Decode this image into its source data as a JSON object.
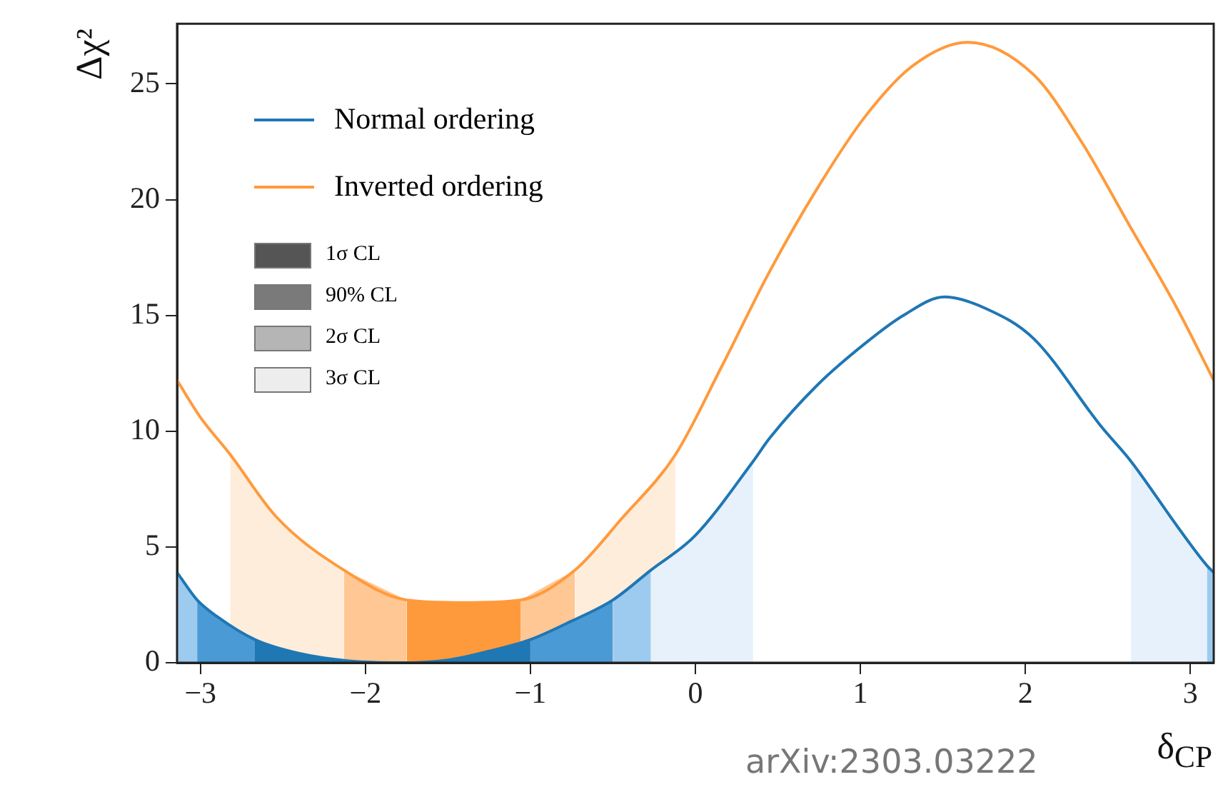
{
  "chart_data": {
    "type": "line",
    "xlabel": "δ$_{CP}$",
    "ylabel": "Δχ²",
    "xlim": [
      -3.1416,
      3.1416
    ],
    "ylim": [
      0,
      27.6
    ],
    "xticks": [
      -3,
      -2,
      -1,
      0,
      1,
      2,
      3
    ],
    "yticks": [
      0,
      5,
      10,
      15,
      20,
      25
    ],
    "grid": false,
    "legend": "top left",
    "marker": "none",
    "series": [
      {
        "type": "area",
        "color": "#1f77b4",
        "x": [
          -2.67,
          -2.4,
          -2.1,
          -1.8,
          -1.5,
          -1.25,
          -1.0
        ],
        "values": [
          1.0,
          0.4,
          0.08,
          0,
          0.12,
          0.5,
          1.0
        ]
      },
      {
        "type": "area",
        "color": "#4a9ad6",
        "x": [
          -3.02,
          -2.9,
          -2.67
        ],
        "values": [
          2.71,
          2.0,
          1.0
        ]
      },
      {
        "type": "area",
        "color": "#4a9ad6",
        "x": [
          -1.0,
          -0.75,
          -0.5
        ],
        "values": [
          1.0,
          1.8,
          2.71
        ]
      },
      {
        "type": "area",
        "color": "#9ccbef",
        "x": [
          -3.1416,
          -3.02
        ],
        "values": [
          3.9,
          2.71
        ]
      },
      {
        "type": "area",
        "color": "#9ccbef",
        "x": [
          -0.5,
          -0.27
        ],
        "values": [
          2.71,
          4.0
        ]
      },
      {
        "type": "area",
        "color": "#9ccbef",
        "x": [
          3.1,
          3.1416
        ],
        "values": [
          4.2,
          3.9
        ]
      },
      {
        "type": "area",
        "color": "#e6f1fb",
        "x": [
          -0.27,
          0,
          0.35
        ],
        "values": [
          4.0,
          5.5,
          8.7
        ]
      },
      {
        "type": "area",
        "color": "#e6f1fb",
        "x": [
          2.64,
          2.92,
          3.1
        ],
        "values": [
          8.7,
          5.9,
          4.2
        ]
      },
      {
        "type": "area",
        "color": "#ff9a3c",
        "x": [
          -1.75,
          -1.4,
          -1.06
        ],
        "values": [
          2.71,
          2.6,
          2.71
        ]
      },
      {
        "type": "area",
        "color": "#ffc793",
        "x": [
          -2.13,
          -1.75
        ],
        "values": [
          4.0,
          2.71
        ]
      },
      {
        "type": "area",
        "color": "#ffc793",
        "x": [
          -1.06,
          -0.73
        ],
        "values": [
          2.71,
          4.0
        ]
      },
      {
        "type": "area",
        "color": "#ffeddc",
        "x": [
          -2.82,
          -2.54,
          -2.13
        ],
        "values": [
          9.0,
          6.3,
          4.0
        ]
      },
      {
        "type": "area",
        "color": "#ffeddc",
        "x": [
          -0.73,
          -0.45,
          -0.12
        ],
        "values": [
          4.0,
          6.2,
          9.0
        ]
      },
      {
        "type": "line",
        "name": "Normal ordering",
        "color": "#1f77b4",
        "x": [
          -3.1416,
          -3.02,
          -2.9,
          -2.67,
          -2.4,
          -2.1,
          -1.8,
          -1.5,
          -1.25,
          -1.0,
          -0.75,
          -0.5,
          -0.27,
          0,
          0.35,
          0.45,
          0.74,
          1.03,
          1.26,
          1.51,
          1.76,
          2.05,
          2.46,
          2.64,
          2.92,
          3.1,
          3.1416
        ],
        "values": [
          3.9,
          2.71,
          2.0,
          1.0,
          0.4,
          0.08,
          0,
          0.12,
          0.5,
          1.0,
          1.8,
          2.71,
          4.0,
          5.5,
          8.7,
          9.7,
          12.0,
          13.8,
          15.0,
          15.8,
          15.3,
          14.0,
          10.2,
          8.7,
          5.9,
          4.2,
          3.9
        ]
      },
      {
        "type": "line",
        "name": "Inverted ordering",
        "color": "#ff9a3c",
        "x": [
          -3.1416,
          -3.0,
          -2.82,
          -2.54,
          -2.13,
          -1.75,
          -1.4,
          -1.06,
          -0.73,
          -0.45,
          -0.12,
          0.16,
          0.45,
          0.74,
          1.03,
          1.32,
          1.65,
          2.05,
          2.34,
          2.63,
          2.92,
          3.1416
        ],
        "values": [
          12.2,
          10.6,
          9.0,
          6.3,
          4.0,
          2.71,
          2.6,
          2.71,
          4.0,
          6.2,
          9.0,
          12.8,
          16.9,
          20.5,
          23.6,
          25.8,
          26.8,
          25.4,
          22.5,
          18.9,
          15.3,
          12.2
        ]
      }
    ],
    "annotations": [
      "1σ CL",
      "90% CL",
      "2σ CL",
      "3σ CL",
      "arXiv:2303.03222"
    ]
  }
}
